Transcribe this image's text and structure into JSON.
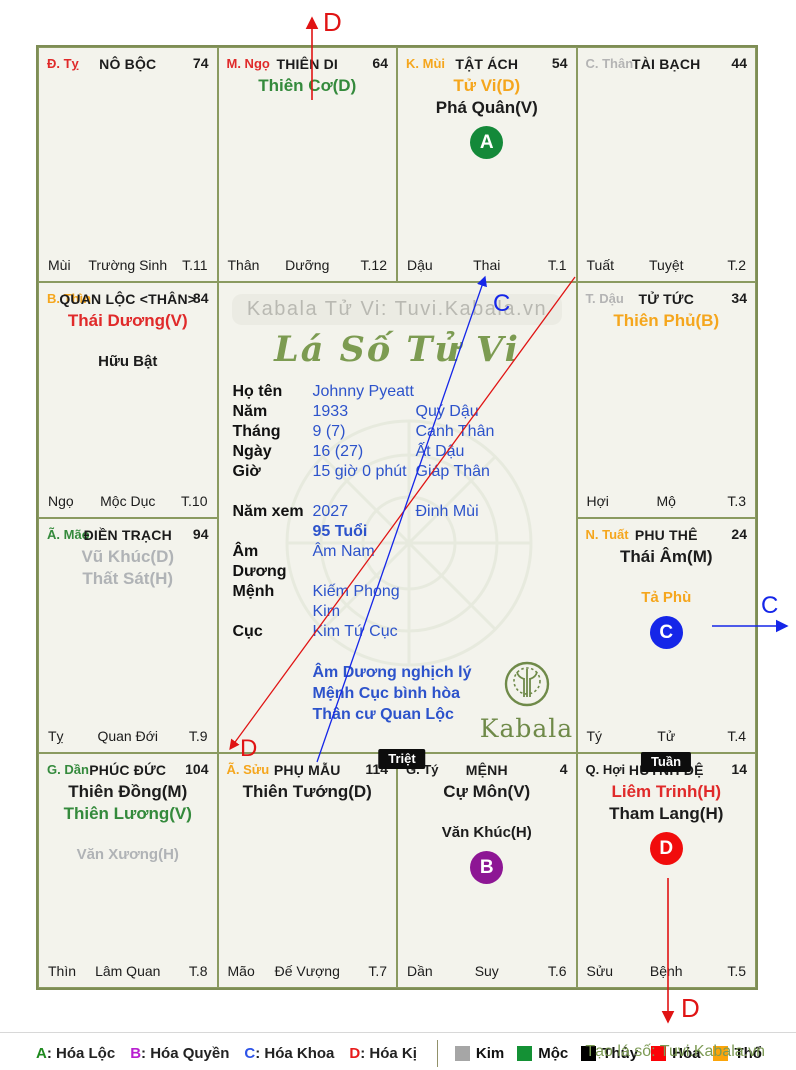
{
  "app": {
    "watermark": "Kabala Tử Vi: Tuvi.Kabala.vn",
    "title": "Lá Số Tử Vi",
    "logo_text": "Kabala",
    "credit": "Tạo lá số: Tuvi.Kabala.vn"
  },
  "person": {
    "rows": [
      {
        "label": "Họ tên",
        "v1": "Johnny Pyeatt",
        "v2": ""
      },
      {
        "label": "Năm",
        "v1": "1933",
        "v2": "Quý Dậu"
      },
      {
        "label": "Tháng",
        "v1": "9 (7)",
        "v2": "Canh Thân"
      },
      {
        "label": "Ngày",
        "v1": "16 (27)",
        "v2": "Ất Dậu"
      },
      {
        "label": "Giờ",
        "v1": "15 giờ 0 phút",
        "v2": "Giáp Thân"
      },
      {
        "label": "Năm xem",
        "v1": "2027",
        "v2": "Đinh Mùi",
        "gap": true
      },
      {
        "label": "",
        "v1": "95 Tuổi",
        "v2": "",
        "strong": true
      },
      {
        "label": "Âm Dương",
        "v1": "Âm Nam",
        "v2": ""
      },
      {
        "label": "Mệnh",
        "v1": "Kiếm Phong Kim",
        "v2": ""
      },
      {
        "label": "Cục",
        "v1": "Kim Tứ Cục",
        "v2": ""
      }
    ],
    "notes": [
      "Âm Dương nghịch lý",
      "Mệnh Cục bình hòa",
      "Thân cư Quan Lộc"
    ]
  },
  "cells": [
    {
      "id": "ty",
      "row": 1,
      "col": 1,
      "branch": "Đ. Tỵ",
      "branch_color": "#e02a2a",
      "palace": "NÔ BỘC",
      "score": "74",
      "stars": [],
      "bottom": {
        "left": "Mùi",
        "mid": "Trường Sinh",
        "right": "T.11"
      }
    },
    {
      "id": "ngo",
      "row": 1,
      "col": 2,
      "branch": "M. Ngọ",
      "branch_color": "#e02a2a",
      "palace": "THIÊN DI",
      "score": "64",
      "stars": [
        {
          "text": "Thiên Cơ(D)",
          "color": "#348a3c"
        }
      ],
      "bottom": {
        "left": "Thân",
        "mid": "Dưỡng",
        "right": "T.12"
      }
    },
    {
      "id": "mui",
      "row": 1,
      "col": 3,
      "branch": "K. Mùi",
      "branch_color": "#f5a61d",
      "palace": "TẬT ÁCH",
      "score": "54",
      "stars": [
        {
          "text": "Tử Vi(D)",
          "color": "#f5a61d"
        },
        {
          "text": "Phá Quân(V)",
          "color": "#1c1c1c"
        }
      ],
      "circle": {
        "letter": "A",
        "color": "#148939"
      },
      "bottom": {
        "left": "Dậu",
        "mid": "Thai",
        "right": "T.1"
      }
    },
    {
      "id": "than",
      "row": 1,
      "col": 4,
      "branch": "C. Thân",
      "branch_color": "#b4b4b4",
      "palace": "TÀI BẠCH",
      "score": "44",
      "stars": [],
      "bottom": {
        "left": "Tuất",
        "mid": "Tuyệt",
        "right": "T.2"
      }
    },
    {
      "id": "thin",
      "row": 2,
      "col": 1,
      "branch": "B. Thìn",
      "branch_color": "#f5a61d",
      "palace": "QUAN LỘC <THÂN>",
      "score": "84",
      "stars": [
        {
          "text": "Thái Dương(V)",
          "color": "#e02a2a"
        },
        {
          "text": "Hữu Bật",
          "color": "#1c1c1c",
          "minor": true
        }
      ],
      "bottom": {
        "left": "Ngọ",
        "mid": "Mộc Dục",
        "right": "T.10"
      }
    },
    {
      "id": "dau",
      "row": 2,
      "col": 4,
      "branch": "T. Dậu",
      "branch_color": "#b4b4b4",
      "palace": "TỬ TỨC",
      "score": "34",
      "stars": [
        {
          "text": "Thiên Phủ(B)",
          "color": "#f5a61d"
        }
      ],
      "bottom": {
        "left": "Hợi",
        "mid": "Mộ",
        "right": "T.3"
      }
    },
    {
      "id": "mao",
      "row": 3,
      "col": 1,
      "branch": "Ã. Mão",
      "branch_color": "#348a3c",
      "palace": "ĐIỀN TRẠCH",
      "score": "94",
      "stars": [
        {
          "text": "Vũ Khúc(D)",
          "color": "#b0b3b6"
        },
        {
          "text": "Thất Sát(H)",
          "color": "#b0b3b6"
        }
      ],
      "bottom": {
        "left": "Tỵ",
        "mid": "Quan Đới",
        "right": "T.9"
      }
    },
    {
      "id": "tuat",
      "row": 3,
      "col": 4,
      "branch": "N. Tuất",
      "branch_color": "#f5a61d",
      "palace": "PHU THÊ",
      "score": "24",
      "stars": [
        {
          "text": "Thái Âm(M)",
          "color": "#1c1c1c"
        },
        {
          "text": "Tả Phù",
          "color": "#f5a61d",
          "minor": true
        }
      ],
      "circle": {
        "letter": "C",
        "color": "#1526e8"
      },
      "bottom": {
        "left": "Tý",
        "mid": "Tử",
        "right": "T.4"
      }
    },
    {
      "id": "dan",
      "row": 4,
      "col": 1,
      "branch": "G. Dần",
      "branch_color": "#348a3c",
      "palace": "PHÚC ĐỨC",
      "score": "104",
      "stars": [
        {
          "text": "Thiên Đồng(M)",
          "color": "#1c1c1c"
        },
        {
          "text": "Thiên Lương(V)",
          "color": "#348a3c"
        },
        {
          "text": "Văn Xương(H)",
          "color": "#b0b3b6",
          "minor": true
        }
      ],
      "bottom": {
        "left": "Thìn",
        "mid": "Lâm Quan",
        "right": "T.8"
      }
    },
    {
      "id": "suu",
      "row": 4,
      "col": 2,
      "branch": "Ã. Sửu",
      "branch_color": "#f5a61d",
      "palace": "PHỤ MẪU",
      "score": "114",
      "stars": [
        {
          "text": "Thiên Tướng(D)",
          "color": "#1c1c1c"
        }
      ],
      "bottom": {
        "left": "Mão",
        "mid": "Đế Vượng",
        "right": "T.7"
      }
    },
    {
      "id": "tyy",
      "row": 4,
      "col": 3,
      "branch": "G. Tý",
      "branch_color": "#1c1c1c",
      "palace": "MỆNH",
      "score": "4",
      "stars": [
        {
          "text": "Cự Môn(V)",
          "color": "#1c1c1c"
        },
        {
          "text": "Văn Khúc(H)",
          "color": "#1c1c1c",
          "minor": true
        }
      ],
      "circle": {
        "letter": "B",
        "color": "#8d1694"
      },
      "bottom": {
        "left": "Dần",
        "mid": "Suy",
        "right": "T.6"
      }
    },
    {
      "id": "hoi",
      "row": 4,
      "col": 4,
      "branch": "Q. Hợi",
      "branch_color": "#1c1c1c",
      "palace": "HUYNH ĐỆ",
      "score": "14",
      "stars": [
        {
          "text": "Liêm Trinh(H)",
          "color": "#e02a2a"
        },
        {
          "text": "Tham Lang(H)",
          "color": "#1c1c1c"
        }
      ],
      "circle": {
        "letter": "D",
        "color": "#f10c0c"
      },
      "bottom": {
        "left": "Sửu",
        "mid": "Bệnh",
        "right": "T.5"
      }
    }
  ],
  "badges": [
    {
      "text": "Triệt"
    },
    {
      "text": "Tuần"
    }
  ],
  "arrows": {
    "top": "D",
    "diag_red": "D",
    "diag_blue": "C",
    "side": "C",
    "bottom": "D"
  },
  "legend": {
    "hoa": [
      {
        "letter": "A",
        "color": "#1f8a1f",
        "label": ": Hóa Lộc"
      },
      {
        "letter": "B",
        "color": "#b81fd0",
        "label": ": Hóa Quyền"
      },
      {
        "letter": "C",
        "color": "#2d53e8",
        "label": ": Hóa Khoa"
      },
      {
        "letter": "D",
        "color": "#e81c1c",
        "label": ": Hóa Kị"
      }
    ],
    "elements": [
      {
        "name": "Kim",
        "color": "#a6a6a6"
      },
      {
        "name": "Mộc",
        "color": "#149135"
      },
      {
        "name": "Thủy",
        "color": "#000000"
      },
      {
        "name": "Hỏa",
        "color": "#fb0207"
      },
      {
        "name": "Thổ",
        "color": "#fba50a"
      }
    ]
  }
}
